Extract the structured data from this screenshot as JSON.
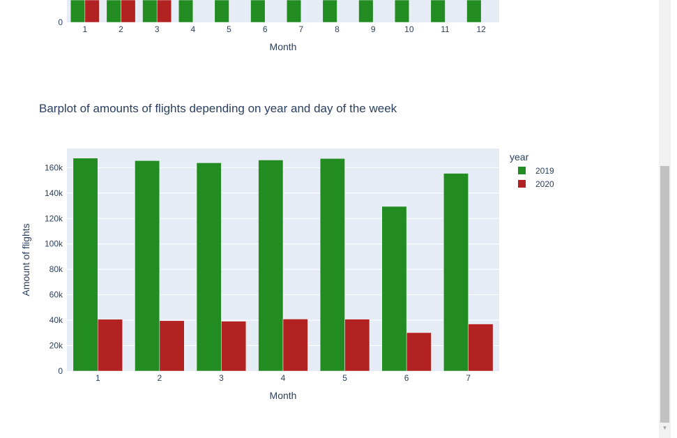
{
  "colors": {
    "y2019": "#228b22",
    "y2020": "#b22222",
    "plot_bg": "#e5ecf6",
    "text": "#2a3f5f"
  },
  "chart_data": [
    {
      "type": "bar",
      "title": "",
      "xlabel": "Month",
      "ylabel": "",
      "categories": [
        "1",
        "2",
        "3",
        "4",
        "5",
        "6",
        "7",
        "8",
        "9",
        "10",
        "11",
        "12"
      ],
      "y_zero_label": "0",
      "series": [
        {
          "name": "2019",
          "values": [
            null,
            null,
            null,
            null,
            null,
            null,
            null,
            null,
            null,
            null,
            null,
            null
          ]
        },
        {
          "name": "2020",
          "values": [
            null,
            null,
            null,
            null,
            null,
            null,
            null,
            null,
            null,
            null,
            null,
            null
          ]
        }
      ],
      "note_visible_2020_months": [
        "1",
        "2",
        "3"
      ]
    },
    {
      "type": "bar",
      "title": "Barplot of amounts of flights depending on year and day of the week",
      "xlabel": "Month",
      "ylabel": "Amount of flights",
      "categories": [
        "1",
        "2",
        "3",
        "4",
        "5",
        "6",
        "7"
      ],
      "ylim": [
        0,
        175000
      ],
      "yticks": [
        0,
        20000,
        40000,
        60000,
        80000,
        100000,
        120000,
        140000,
        160000
      ],
      "ytick_labels": [
        "0",
        "20k",
        "40k",
        "60k",
        "80k",
        "100k",
        "120k",
        "140k",
        "160k"
      ],
      "legend_title": "year",
      "legend_position": "top-right",
      "grid": true,
      "series": [
        {
          "name": "2019",
          "values": [
            167500,
            165500,
            163800,
            166000,
            167200,
            129500,
            155500
          ]
        },
        {
          "name": "2020",
          "values": [
            40700,
            39600,
            39200,
            40900,
            40800,
            30200,
            37000
          ]
        }
      ]
    }
  ]
}
